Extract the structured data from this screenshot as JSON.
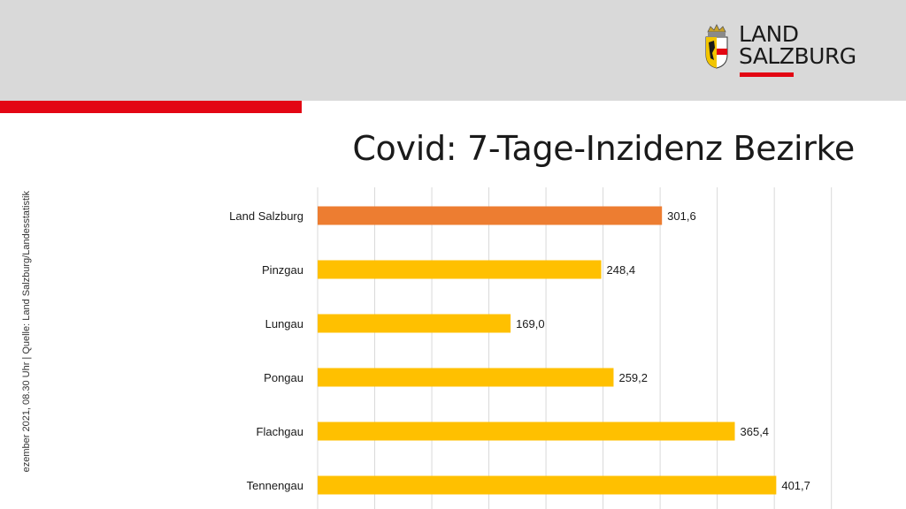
{
  "header": {
    "logo_line1": "LAND",
    "logo_line2": "SALZBURG",
    "brand_color": "#e30613",
    "header_bg": "#d9d9d9"
  },
  "side_note": "ezember  2021, 08.30 Uhr  |  Quelle: Land Salzburg/Landesstatistik",
  "chart_data": {
    "type": "bar",
    "orientation": "horizontal",
    "title": "Covid: 7-Tage-Inzidenz Bezirke",
    "categories": [
      "Land Salzburg",
      "Pinzgau",
      "Lungau",
      "Pongau",
      "Flachgau",
      "Tennengau"
    ],
    "values": [
      301.6,
      248.4,
      169.0,
      259.2,
      365.4,
      401.7
    ],
    "value_labels": [
      "301,6",
      "248,4",
      "169,0",
      "259,2",
      "365,4",
      "401,7"
    ],
    "colors": [
      "#ed7d31",
      "#ffc000",
      "#ffc000",
      "#ffc000",
      "#ffc000",
      "#ffc000"
    ],
    "xlim": [
      0,
      450
    ],
    "grid_step": 50,
    "grid": true,
    "legend": "none"
  }
}
